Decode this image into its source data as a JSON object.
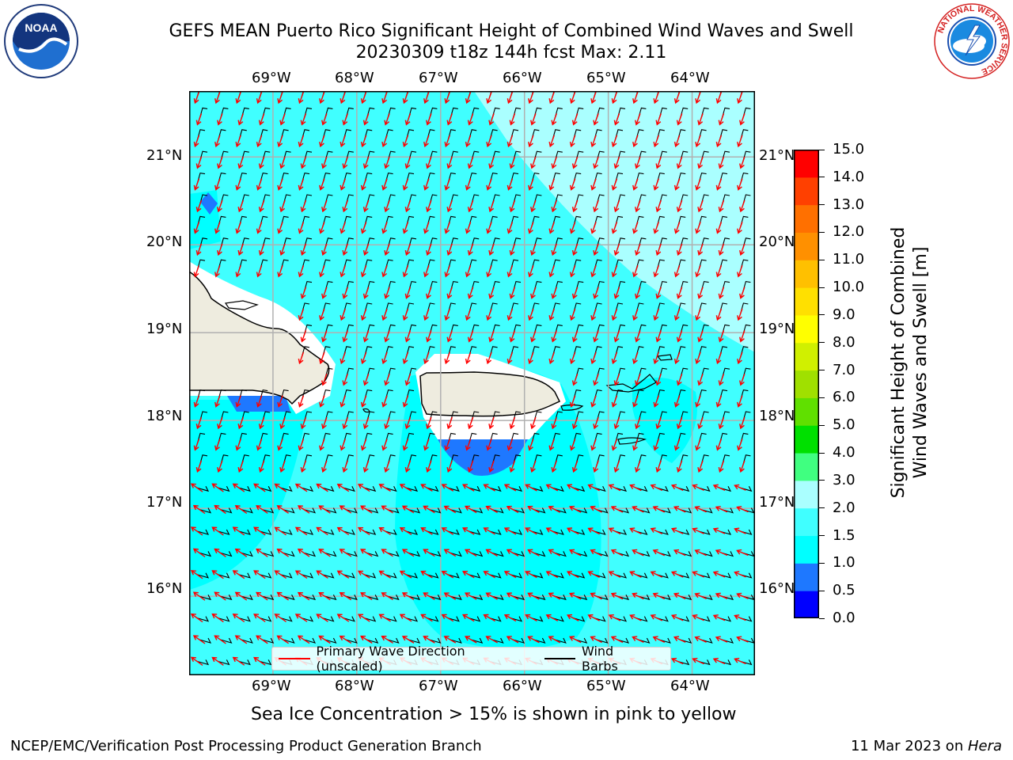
{
  "header": {
    "title_line1": "GEFS MEAN Puerto Rico Significant Height of Combined Wind Waves and Swell",
    "title_line2": "20230309 t18z 144h fcst   Max: 2.11"
  },
  "logos": {
    "noaa": "NOAA",
    "nws_ring": "NATIONAL WEATHER SERVICE"
  },
  "map": {
    "lon_labels": [
      "69°W",
      "68°W",
      "67°W",
      "66°W",
      "65°W",
      "64°W"
    ],
    "lat_labels": [
      "21°N",
      "20°N",
      "19°N",
      "18°N",
      "17°N",
      "16°N"
    ],
    "lon_range": [
      -70.0,
      -63.25
    ],
    "lat_range": [
      15.1,
      21.75
    ],
    "legend": {
      "wave_dir": "Primary Wave Direction (unscaled)",
      "wind_barbs": "Wind Barbs"
    },
    "colors": {
      "land": "#eeecdf",
      "coast": "#000000",
      "wave_arrow": "#ff0000",
      "barb": "#000000",
      "grid": "#b0b0b0"
    }
  },
  "colorbar": {
    "ticks": [
      "15.0",
      "14.0",
      "13.0",
      "12.0",
      "11.0",
      "10.0",
      "9.0",
      "8.0",
      "7.0",
      "6.0",
      "5.0",
      "4.0",
      "3.0",
      "2.0",
      "1.5",
      "1.0",
      "0.5",
      "0.0"
    ],
    "label_line1": "Significant Height of Combined",
    "label_line2": "Wind Waves and Swell [m]",
    "levels": [
      {
        "from": 0.0,
        "to": 0.5,
        "color": "#0000ff"
      },
      {
        "from": 0.5,
        "to": 1.0,
        "color": "#1e78ff"
      },
      {
        "from": 1.0,
        "to": 1.5,
        "color": "#00ffff"
      },
      {
        "from": 1.5,
        "to": 2.0,
        "color": "#40ffff"
      },
      {
        "from": 2.0,
        "to": 3.0,
        "color": "#aaffff"
      },
      {
        "from": 3.0,
        "to": 4.0,
        "color": "#40ff80"
      },
      {
        "from": 4.0,
        "to": 5.0,
        "color": "#00e000"
      },
      {
        "from": 5.0,
        "to": 6.0,
        "color": "#60e000"
      },
      {
        "from": 6.0,
        "to": 7.0,
        "color": "#a0e000"
      },
      {
        "from": 7.0,
        "to": 8.0,
        "color": "#d0f000"
      },
      {
        "from": 8.0,
        "to": 9.0,
        "color": "#ffff00"
      },
      {
        "from": 9.0,
        "to": 10.0,
        "color": "#ffe000"
      },
      {
        "from": 10.0,
        "to": 11.0,
        "color": "#ffc000"
      },
      {
        "from": 11.0,
        "to": 12.0,
        "color": "#ff9000"
      },
      {
        "from": 12.0,
        "to": 13.0,
        "color": "#ff7000"
      },
      {
        "from": 13.0,
        "to": 14.0,
        "color": "#ff4000"
      },
      {
        "from": 14.0,
        "to": 15.0,
        "color": "#ff0000"
      }
    ]
  },
  "notes": {
    "sea_ice": "Sea Ice Concentration > 15% is shown in pink to yellow"
  },
  "footer": {
    "left": "NCEP/EMC/Verification Post Processing Product Generation Branch",
    "right_date": "11 Mar 2023 on ",
    "right_host": "Hera"
  }
}
